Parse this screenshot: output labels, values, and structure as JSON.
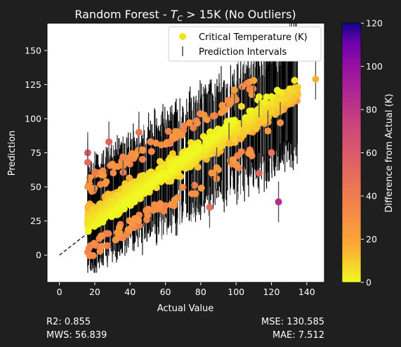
{
  "chart_data": {
    "type": "scatter",
    "title_prefix": "Random Forest - ",
    "title_symbol": "T",
    "title_subscript": "C",
    "title_suffix": " > 15K (No Outliers)",
    "xlabel": "Actual Value",
    "ylabel": "Prediction",
    "xlim": [
      -7,
      150
    ],
    "ylim": [
      -20,
      170
    ],
    "xticks": [
      0,
      20,
      40,
      60,
      80,
      100,
      120,
      140
    ],
    "yticks": [
      0,
      25,
      50,
      75,
      100,
      125,
      150
    ],
    "grid": false,
    "legend_position": "top-right",
    "legend": [
      {
        "label": "Critical Temperature (K)",
        "marker": "dot",
        "color": "#f0e51d"
      },
      {
        "label": "Prediction Intervals",
        "marker": "errorbar",
        "color": "#555555"
      }
    ],
    "reference_line": {
      "style": "dashed",
      "x": [
        0,
        18
      ],
      "y": [
        0,
        18
      ]
    },
    "colorbar": {
      "label": "Difference from Actual (K)",
      "range": [
        0,
        120
      ],
      "ticks": [
        0,
        20,
        40,
        60,
        80,
        100,
        120
      ],
      "colormap": "plasma_r"
    },
    "points": [
      {
        "x": 124,
        "y": 39,
        "diff": 85
      },
      {
        "x": 113,
        "y": 60,
        "diff": 53
      },
      {
        "x": 16,
        "y": 75,
        "diff": 59
      },
      {
        "x": 16,
        "y": 68,
        "diff": 52
      },
      {
        "x": 28,
        "y": 83,
        "diff": 55
      },
      {
        "x": 145,
        "y": 129,
        "diff": 16
      },
      {
        "x": 118,
        "y": 91,
        "diff": 27
      },
      {
        "x": 120,
        "y": 75,
        "diff": 45
      },
      {
        "x": 96,
        "y": 82,
        "diff": 14
      },
      {
        "x": 89,
        "y": 64,
        "diff": 25
      },
      {
        "x": 85,
        "y": 35,
        "diff": 50
      },
      {
        "x": 75,
        "y": 45,
        "diff": 30
      },
      {
        "x": 36,
        "y": 72,
        "diff": 36
      },
      {
        "x": 45,
        "y": 90,
        "diff": 45
      },
      {
        "x": 20,
        "y": 61,
        "diff": 41
      },
      {
        "x": 99,
        "y": 121,
        "diff": 22
      },
      {
        "x": 113,
        "y": 116,
        "diff": 3
      },
      {
        "x": 125,
        "y": 97,
        "diff": 28
      },
      {
        "x": 110,
        "y": 128,
        "diff": 18
      },
      {
        "x": 103,
        "y": 109,
        "diff": 6
      }
    ],
    "band": {
      "x_start": 16,
      "x_end": 135,
      "slope": 0.78,
      "intercept": 14,
      "spread": 14
    }
  },
  "metrics": {
    "r2": "R2: 0.855",
    "mws": "MWS: 56.839",
    "mse": "MSE: 130.585",
    "mae": "MAE: 7.512"
  },
  "colors": {
    "figure_background": "#1f1f1f",
    "axes_background": "#ffffff",
    "interval_color": "#000000"
  }
}
